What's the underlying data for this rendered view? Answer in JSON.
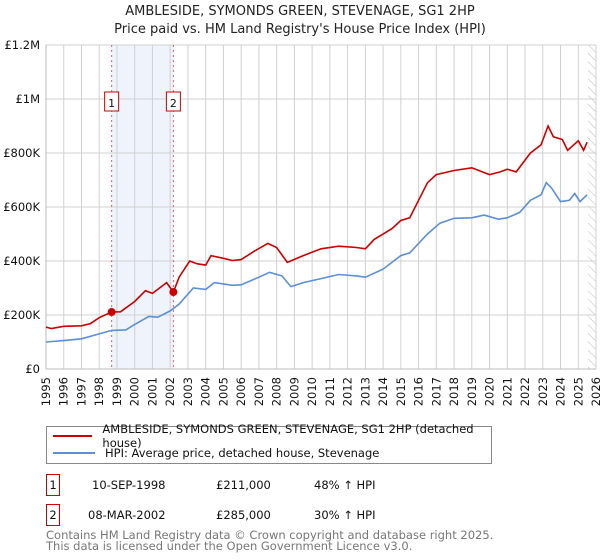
{
  "chart_data": {
    "type": "line",
    "title": "AMBLESIDE, SYMONDS GREEN, STEVENAGE, SG1 2HP",
    "subtitle": "Price paid vs. HM Land Registry's House Price Index (HPI)",
    "xlim": [
      1995,
      2026
    ],
    "ylim": [
      0,
      1200000
    ],
    "x_ticks": [
      "1995",
      "1996",
      "1997",
      "1998",
      "1999",
      "2000",
      "2001",
      "2002",
      "2003",
      "2004",
      "2005",
      "2006",
      "2007",
      "2008",
      "2009",
      "2010",
      "2011",
      "2012",
      "2013",
      "2014",
      "2015",
      "2016",
      "2017",
      "2018",
      "2019",
      "2020",
      "2021",
      "2022",
      "2023",
      "2024",
      "2025",
      "2026"
    ],
    "y_ticks": [
      {
        "v": 0,
        "label": "£0"
      },
      {
        "v": 200000,
        "label": "£200K"
      },
      {
        "v": 400000,
        "label": "£400K"
      },
      {
        "v": 600000,
        "label": "£600K"
      },
      {
        "v": 800000,
        "label": "£800K"
      },
      {
        "v": 1000000,
        "label": "£1M"
      },
      {
        "v": 1200000,
        "label": "£1.2M"
      }
    ],
    "grid": true,
    "shaded_range": [
      1998.7,
      2002.18
    ],
    "future_hatch_from": 2025.55,
    "series": [
      {
        "name": "AMBLESIDE, SYMONDS GREEN, STEVENAGE, SG1 2HP (detached house)",
        "color": "#cc0000",
        "x": [
          1995,
          1995.3,
          1996,
          1997,
          1997.5,
          1998,
          1998.7,
          1999.2,
          2000,
          2000.6,
          2001,
          2001.8,
          2002.18,
          2002.5,
          2003.1,
          2003.5,
          2004,
          2004.3,
          2005,
          2005.5,
          2006,
          2006.7,
          2007.5,
          2008,
          2008.6,
          2009.5,
          2010.5,
          2011.5,
          2012.5,
          2013,
          2013.5,
          2014.5,
          2015,
          2015.5,
          2016.5,
          2017,
          2018,
          2019,
          2020,
          2020.6,
          2021,
          2021.5,
          2022.3,
          2022.9,
          2023.3,
          2023.6,
          2024.1,
          2024.4,
          2025,
          2025.3,
          2025.5
        ],
        "y": [
          155000,
          150000,
          158000,
          160000,
          168000,
          190000,
          211000,
          212000,
          250000,
          290000,
          280000,
          320000,
          285000,
          340000,
          400000,
          390000,
          385000,
          420000,
          410000,
          402000,
          405000,
          435000,
          465000,
          450000,
          395000,
          420000,
          445000,
          455000,
          450000,
          445000,
          480000,
          520000,
          550000,
          560000,
          690000,
          720000,
          735000,
          745000,
          720000,
          730000,
          740000,
          730000,
          800000,
          830000,
          900000,
          860000,
          850000,
          810000,
          845000,
          810000,
          840000
        ]
      },
      {
        "name": "HPI: Average price, detached house, Stevenage",
        "color": "#5b8fd6",
        "x": [
          1995,
          1996,
          1997,
          1998,
          1998.7,
          1999.5,
          2000,
          2000.8,
          2001.3,
          2002,
          2002.5,
          2003.3,
          2004,
          2004.5,
          2005.5,
          2006,
          2007,
          2007.6,
          2008.3,
          2008.8,
          2009.5,
          2010.5,
          2011.5,
          2012.5,
          2013,
          2014,
          2015,
          2015.5,
          2016.5,
          2017.2,
          2018,
          2019,
          2019.7,
          2020.5,
          2021,
          2021.7,
          2022.3,
          2022.9,
          2023.2,
          2023.5,
          2024,
          2024.5,
          2024.8,
          2025.1,
          2025.5
        ],
        "y": [
          100000,
          105000,
          112000,
          130000,
          143000,
          145000,
          165000,
          195000,
          192000,
          215000,
          240000,
          300000,
          295000,
          320000,
          310000,
          312000,
          340000,
          358000,
          345000,
          305000,
          320000,
          335000,
          350000,
          345000,
          340000,
          370000,
          420000,
          430000,
          500000,
          540000,
          558000,
          560000,
          570000,
          555000,
          560000,
          580000,
          625000,
          645000,
          690000,
          670000,
          620000,
          625000,
          650000,
          620000,
          645000
        ]
      }
    ],
    "sales": [
      {
        "id": "1",
        "x": 1998.7,
        "y": 211000,
        "date": "10-SEP-1998",
        "price": "£211,000",
        "delta": "48% ↑ HPI"
      },
      {
        "id": "2",
        "x": 2002.18,
        "y": 285000,
        "date": "08-MAR-2002",
        "price": "£285,000",
        "delta": "30% ↑ HPI"
      }
    ]
  },
  "legend": {
    "red_label": "AMBLESIDE, SYMONDS GREEN, STEVENAGE, SG1 2HP (detached house)",
    "blue_label": "HPI: Average price, detached house, Stevenage"
  },
  "footer": {
    "line1": "Contains HM Land Registry data © Crown copyright and database right 2025.",
    "line2": "This data is licensed under the Open Government Licence v3.0."
  }
}
